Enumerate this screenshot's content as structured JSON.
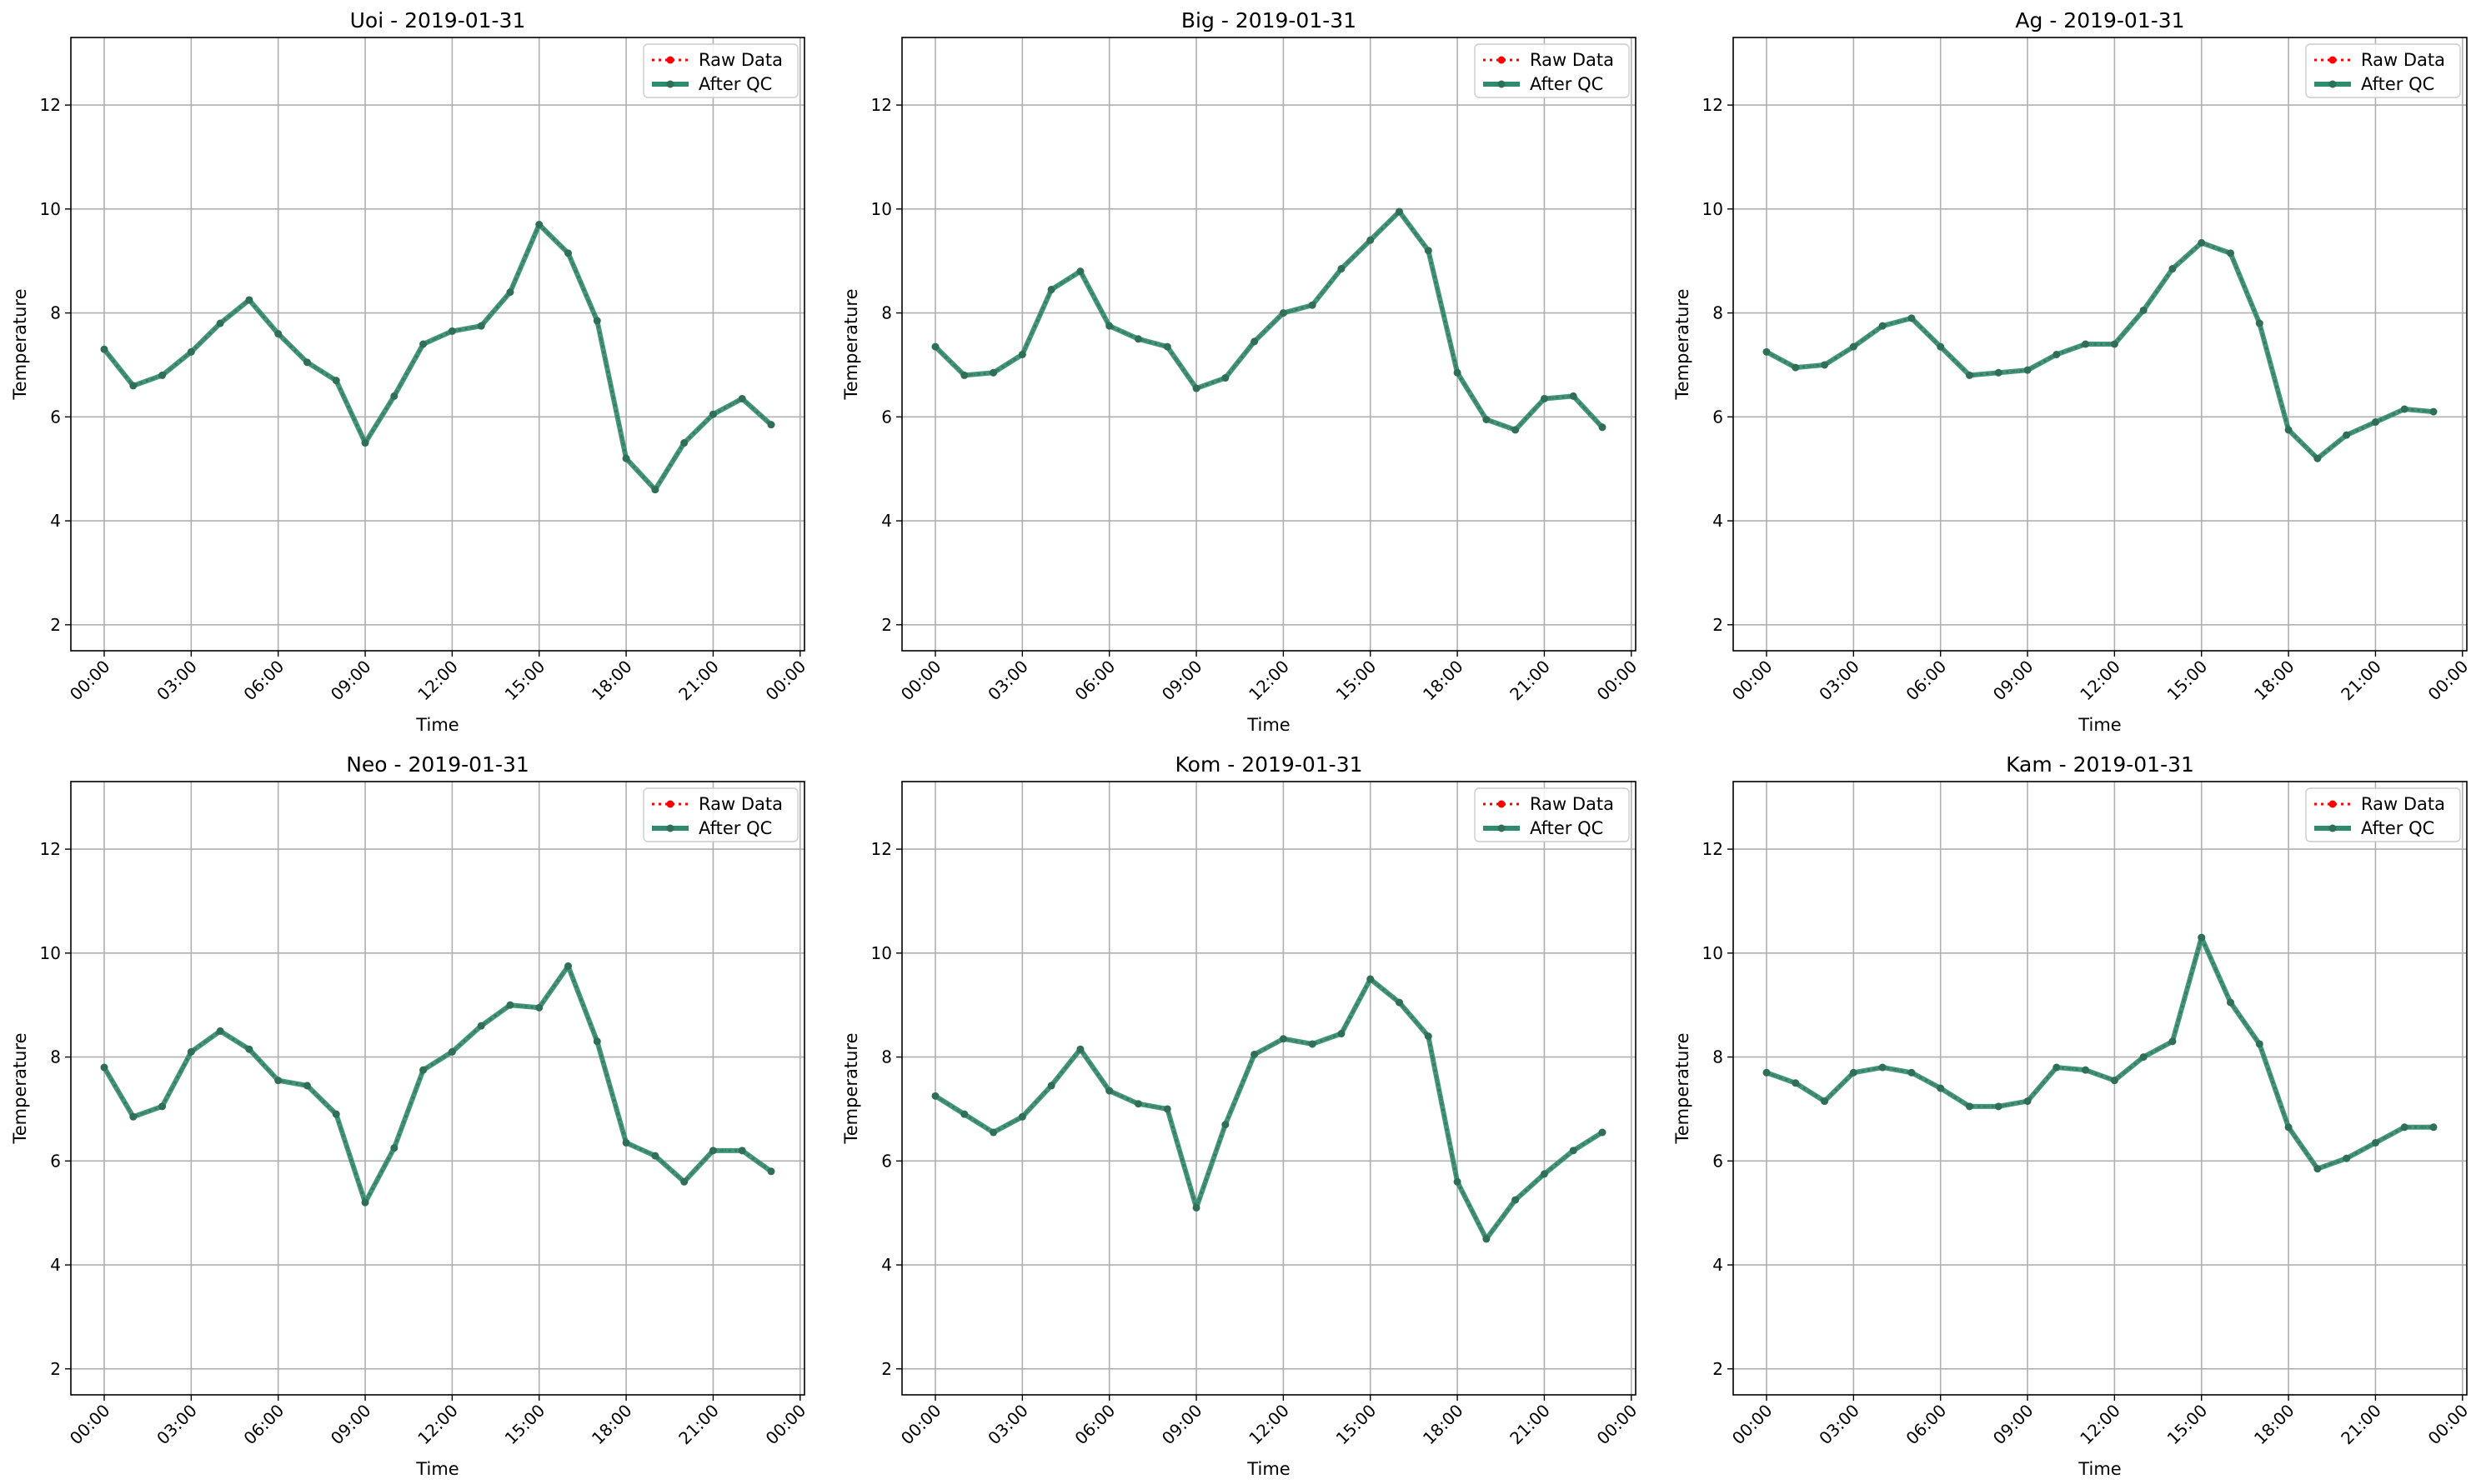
{
  "figure": {
    "legend_labels": {
      "raw": "Raw Data",
      "qc": "After QC"
    },
    "colors": {
      "raw": "#ff0000",
      "qc": "#2e8b6e",
      "qc_dots": "#2f6f55",
      "grid": "#b0b0b0"
    }
  },
  "chart_data": [
    {
      "type": "line",
      "title": "Uoi - 2019-01-31",
      "xlabel": "Time",
      "ylabel": "Temperature",
      "xlim": [
        -1.15,
        24.15
      ],
      "ylim": [
        1.5,
        13.3
      ],
      "xticks": [
        0,
        3,
        6,
        9,
        12,
        15,
        18,
        21,
        24
      ],
      "xtick_labels": [
        "00:00",
        "03:00",
        "06:00",
        "09:00",
        "12:00",
        "15:00",
        "18:00",
        "21:00",
        "00:00"
      ],
      "yticks": [
        2,
        4,
        6,
        8,
        10,
        12
      ],
      "grid": true,
      "legend": "top-right",
      "x": [
        0,
        1,
        2,
        3,
        4,
        5,
        6,
        7,
        8,
        9,
        10,
        11,
        12,
        13,
        14,
        15,
        16,
        17,
        18,
        19,
        20,
        21,
        22,
        23
      ],
      "series": [
        {
          "name": "Raw Data",
          "values": [
            7.3,
            6.6,
            6.8,
            7.25,
            7.8,
            8.25,
            7.6,
            7.05,
            6.7,
            5.5,
            6.4,
            7.4,
            7.65,
            7.75,
            8.4,
            9.7,
            9.15,
            7.85,
            5.2,
            4.6,
            5.5,
            6.05,
            6.35,
            5.85
          ]
        },
        {
          "name": "After QC",
          "values": [
            7.3,
            6.6,
            6.8,
            7.25,
            7.8,
            8.25,
            7.6,
            7.05,
            6.7,
            5.5,
            6.4,
            7.4,
            7.65,
            7.75,
            8.4,
            9.7,
            9.15,
            7.85,
            5.2,
            4.6,
            5.5,
            6.05,
            6.35,
            5.85
          ]
        }
      ]
    },
    {
      "type": "line",
      "title": "Big - 2019-01-31",
      "xlabel": "Time",
      "ylabel": "Temperature",
      "xlim": [
        -1.15,
        24.15
      ],
      "ylim": [
        1.5,
        13.3
      ],
      "xticks": [
        0,
        3,
        6,
        9,
        12,
        15,
        18,
        21,
        24
      ],
      "xtick_labels": [
        "00:00",
        "03:00",
        "06:00",
        "09:00",
        "12:00",
        "15:00",
        "18:00",
        "21:00",
        "00:00"
      ],
      "yticks": [
        2,
        4,
        6,
        8,
        10,
        12
      ],
      "grid": true,
      "legend": "top-right",
      "x": [
        0,
        1,
        2,
        3,
        4,
        5,
        6,
        7,
        8,
        9,
        10,
        11,
        12,
        13,
        14,
        15,
        16,
        17,
        18,
        19,
        20,
        21,
        22,
        23
      ],
      "series": [
        {
          "name": "Raw Data",
          "values": [
            7.35,
            6.8,
            6.85,
            7.2,
            8.45,
            8.8,
            7.75,
            7.5,
            7.35,
            6.55,
            6.75,
            7.45,
            8.0,
            8.15,
            8.85,
            9.4,
            9.95,
            9.2,
            6.85,
            5.95,
            5.75,
            6.35,
            6.4,
            5.8
          ]
        },
        {
          "name": "After QC",
          "values": [
            7.35,
            6.8,
            6.85,
            7.2,
            8.45,
            8.8,
            7.75,
            7.5,
            7.35,
            6.55,
            6.75,
            7.45,
            8.0,
            8.15,
            8.85,
            9.4,
            9.95,
            9.2,
            6.85,
            5.95,
            5.75,
            6.35,
            6.4,
            5.8
          ]
        }
      ]
    },
    {
      "type": "line",
      "title": "Ag - 2019-01-31",
      "xlabel": "Time",
      "ylabel": "Temperature",
      "xlim": [
        -1.15,
        24.15
      ],
      "ylim": [
        1.5,
        13.3
      ],
      "xticks": [
        0,
        3,
        6,
        9,
        12,
        15,
        18,
        21,
        24
      ],
      "xtick_labels": [
        "00:00",
        "03:00",
        "06:00",
        "09:00",
        "12:00",
        "15:00",
        "18:00",
        "21:00",
        "00:00"
      ],
      "yticks": [
        2,
        4,
        6,
        8,
        10,
        12
      ],
      "grid": true,
      "legend": "top-right",
      "x": [
        0,
        1,
        2,
        3,
        4,
        5,
        6,
        7,
        8,
        9,
        10,
        11,
        12,
        13,
        14,
        15,
        16,
        17,
        18,
        19,
        20,
        21,
        22,
        23
      ],
      "series": [
        {
          "name": "Raw Data",
          "values": [
            7.25,
            6.95,
            7.0,
            7.35,
            7.75,
            7.9,
            7.35,
            6.8,
            6.85,
            6.9,
            7.2,
            7.4,
            7.4,
            8.05,
            8.85,
            9.35,
            9.15,
            7.8,
            5.75,
            5.2,
            5.65,
            5.9,
            6.15,
            6.1
          ]
        },
        {
          "name": "After QC",
          "values": [
            7.25,
            6.95,
            7.0,
            7.35,
            7.75,
            7.9,
            7.35,
            6.8,
            6.85,
            6.9,
            7.2,
            7.4,
            7.4,
            8.05,
            8.85,
            9.35,
            9.15,
            7.8,
            5.75,
            5.2,
            5.65,
            5.9,
            6.15,
            6.1
          ]
        }
      ]
    },
    {
      "type": "line",
      "title": "Neo - 2019-01-31",
      "xlabel": "Time",
      "ylabel": "Temperature",
      "xlim": [
        -1.15,
        24.15
      ],
      "ylim": [
        1.5,
        13.3
      ],
      "xticks": [
        0,
        3,
        6,
        9,
        12,
        15,
        18,
        21,
        24
      ],
      "xtick_labels": [
        "00:00",
        "03:00",
        "06:00",
        "09:00",
        "12:00",
        "15:00",
        "18:00",
        "21:00",
        "00:00"
      ],
      "yticks": [
        2,
        4,
        6,
        8,
        10,
        12
      ],
      "grid": true,
      "legend": "top-right",
      "x": [
        0,
        1,
        2,
        3,
        4,
        5,
        6,
        7,
        8,
        9,
        10,
        11,
        12,
        13,
        14,
        15,
        16,
        17,
        18,
        19,
        20,
        21,
        22,
        23
      ],
      "series": [
        {
          "name": "Raw Data",
          "values": [
            7.8,
            6.85,
            7.05,
            8.1,
            8.5,
            8.15,
            7.55,
            7.45,
            6.9,
            5.2,
            6.25,
            7.75,
            8.1,
            8.6,
            9.0,
            8.95,
            9.75,
            8.3,
            6.35,
            6.1,
            5.6,
            6.2,
            6.2,
            5.8
          ]
        },
        {
          "name": "After QC",
          "values": [
            7.8,
            6.85,
            7.05,
            8.1,
            8.5,
            8.15,
            7.55,
            7.45,
            6.9,
            5.2,
            6.25,
            7.75,
            8.1,
            8.6,
            9.0,
            8.95,
            9.75,
            8.3,
            6.35,
            6.1,
            5.6,
            6.2,
            6.2,
            5.8
          ]
        }
      ]
    },
    {
      "type": "line",
      "title": "Kom - 2019-01-31",
      "xlabel": "Time",
      "ylabel": "Temperature",
      "xlim": [
        -1.15,
        24.15
      ],
      "ylim": [
        1.5,
        13.3
      ],
      "xticks": [
        0,
        3,
        6,
        9,
        12,
        15,
        18,
        21,
        24
      ],
      "xtick_labels": [
        "00:00",
        "03:00",
        "06:00",
        "09:00",
        "12:00",
        "15:00",
        "18:00",
        "21:00",
        "00:00"
      ],
      "yticks": [
        2,
        4,
        6,
        8,
        10,
        12
      ],
      "grid": true,
      "legend": "top-right",
      "x": [
        0,
        1,
        2,
        3,
        4,
        5,
        6,
        7,
        8,
        9,
        10,
        11,
        12,
        13,
        14,
        15,
        16,
        17,
        18,
        19,
        20,
        21,
        22,
        23
      ],
      "series": [
        {
          "name": "Raw Data",
          "values": [
            7.25,
            6.9,
            6.55,
            6.85,
            7.45,
            8.15,
            7.35,
            7.1,
            7.0,
            5.1,
            6.7,
            8.05,
            8.35,
            8.25,
            8.45,
            9.5,
            9.05,
            8.4,
            5.6,
            4.5,
            5.25,
            5.75,
            6.2,
            6.55
          ]
        },
        {
          "name": "After QC",
          "values": [
            7.25,
            6.9,
            6.55,
            6.85,
            7.45,
            8.15,
            7.35,
            7.1,
            7.0,
            5.1,
            6.7,
            8.05,
            8.35,
            8.25,
            8.45,
            9.5,
            9.05,
            8.4,
            5.6,
            4.5,
            5.25,
            5.75,
            6.2,
            6.55
          ]
        }
      ]
    },
    {
      "type": "line",
      "title": "Kam - 2019-01-31",
      "xlabel": "Time",
      "ylabel": "Temperature",
      "xlim": [
        -1.15,
        24.15
      ],
      "ylim": [
        1.5,
        13.3
      ],
      "xticks": [
        0,
        3,
        6,
        9,
        12,
        15,
        18,
        21,
        24
      ],
      "xtick_labels": [
        "00:00",
        "03:00",
        "06:00",
        "09:00",
        "12:00",
        "15:00",
        "18:00",
        "21:00",
        "00:00"
      ],
      "yticks": [
        2,
        4,
        6,
        8,
        10,
        12
      ],
      "grid": true,
      "legend": "top-right",
      "x": [
        0,
        1,
        2,
        3,
        4,
        5,
        6,
        7,
        8,
        9,
        10,
        11,
        12,
        13,
        14,
        15,
        16,
        17,
        18,
        19,
        20,
        21,
        22,
        23
      ],
      "series": [
        {
          "name": "Raw Data",
          "values": [
            7.7,
            7.5,
            7.15,
            7.7,
            7.8,
            7.7,
            7.4,
            7.05,
            7.05,
            7.15,
            7.8,
            7.75,
            7.55,
            8.0,
            8.3,
            10.3,
            9.05,
            8.25,
            6.65,
            5.85,
            6.05,
            6.35,
            6.65,
            6.65
          ]
        },
        {
          "name": "After QC",
          "values": [
            7.7,
            7.5,
            7.15,
            7.7,
            7.8,
            7.7,
            7.4,
            7.05,
            7.05,
            7.15,
            7.8,
            7.75,
            7.55,
            8.0,
            8.3,
            10.3,
            9.05,
            8.25,
            6.65,
            5.85,
            6.05,
            6.35,
            6.65,
            6.65
          ]
        }
      ]
    }
  ]
}
